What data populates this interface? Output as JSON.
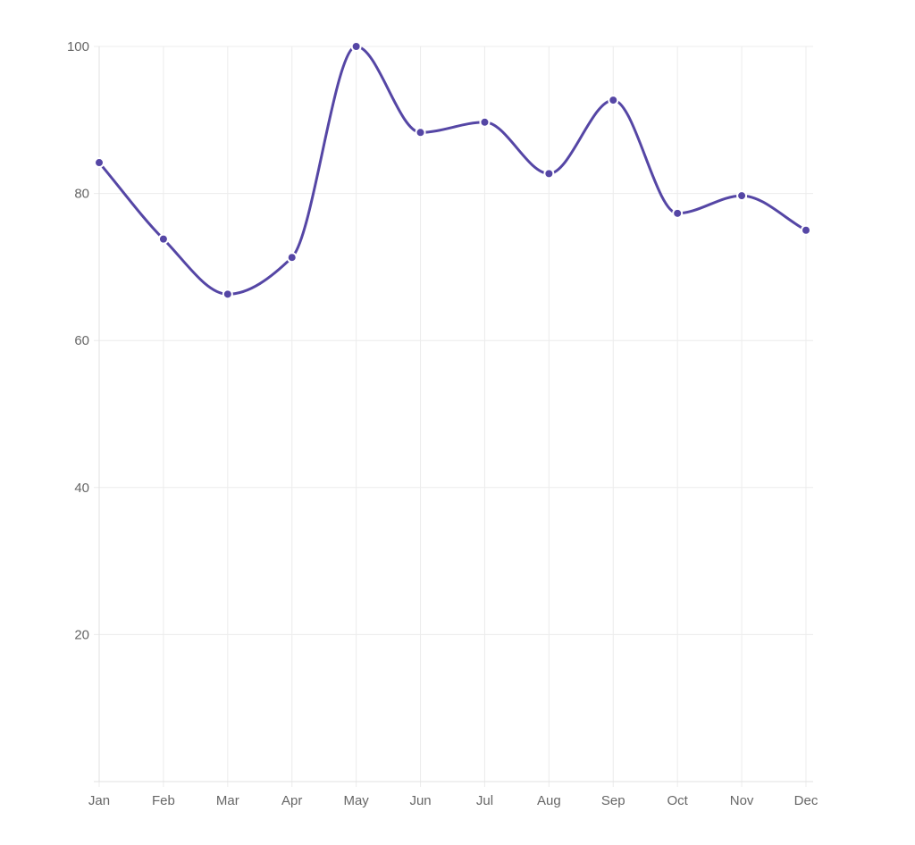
{
  "chart_data": {
    "type": "line",
    "categories": [
      "Jan",
      "Feb",
      "Mar",
      "Apr",
      "May",
      "Jun",
      "Jul",
      "Aug",
      "Sep",
      "Oct",
      "Nov",
      "Dec"
    ],
    "series": [
      {
        "values": [
          84.2,
          73.8,
          66.3,
          71.3,
          100,
          88.3,
          89.7,
          82.7,
          92.7,
          77.3,
          79.7,
          75
        ]
      }
    ],
    "ylim": [
      0,
      100
    ],
    "yticks": [
      20,
      40,
      60,
      80,
      100
    ],
    "grid": true,
    "line_color": "#5546a5",
    "title": "",
    "xlabel": "",
    "ylabel": ""
  }
}
